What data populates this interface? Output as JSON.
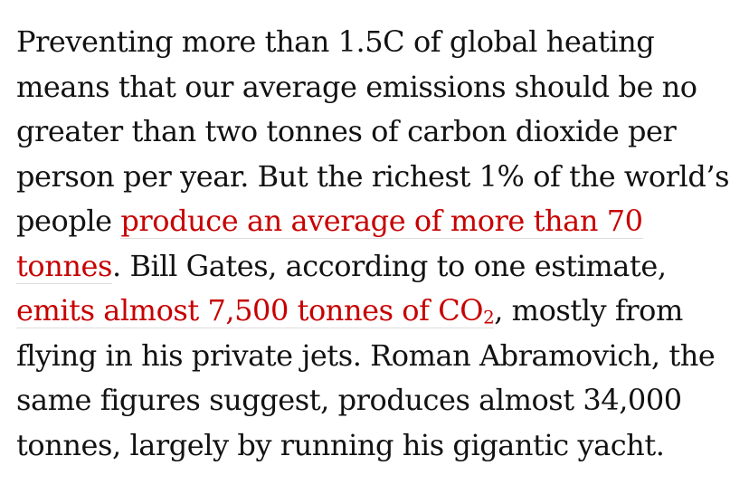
{
  "article": {
    "text_1": "Preventing more than 1.5C of global heating means that our average emissions should be no greater than two tonnes of carbon dioxide per person per year. But the richest 1% of the world’s people ",
    "link_1": "produce an average of more than 70 tonnes",
    "text_2": ". Bill Gates, according to one estimate, ",
    "link_2_main": "emits almost 7,500 tonnes of CO",
    "link_2_subscript": "2",
    "text_3": ", mostly from flying in his private jets. Roman Abramovich, the same figures suggest, produces almost 34,000 tonnes, largely by running his gigantic yacht."
  },
  "colors": {
    "body_text": "#121212",
    "link_text": "#c70000",
    "link_underline": "#dcdcdc",
    "background": "#ffffff"
  }
}
